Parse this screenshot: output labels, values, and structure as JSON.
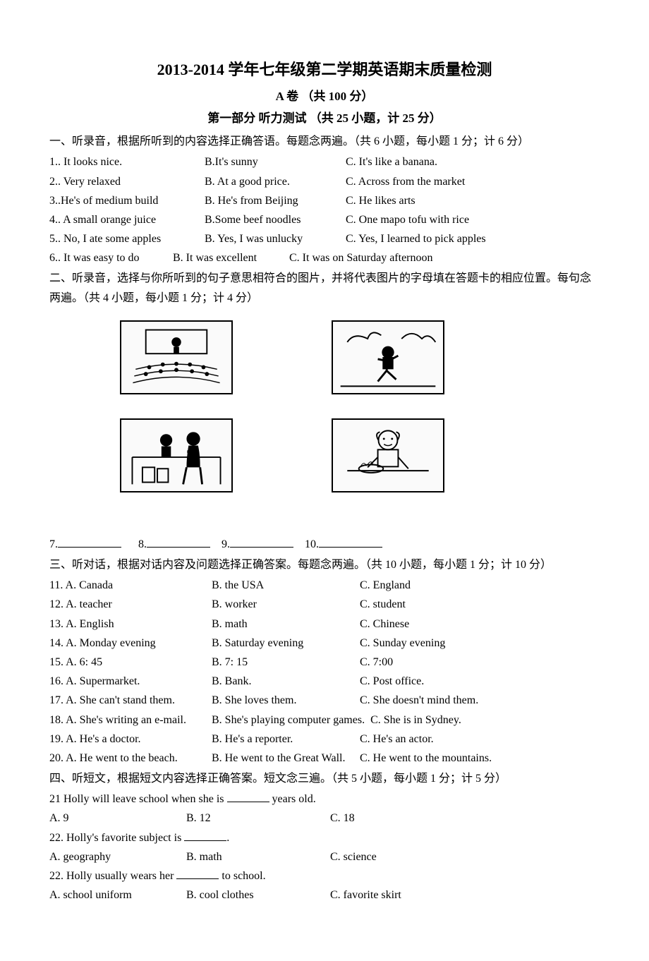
{
  "title": "2013-2014 学年七年级第二学期英语期末质量检测",
  "paper_label": "A 卷 （共 100 分）",
  "part1_title": "第一部分   听力测试  （共 25 小题，计 25 分）",
  "section1": {
    "instruction": "一、听录音，根据所听到的内容选择正确答语。每题念两遍。（共 6 小题，每小题 1 分；计 6 分）",
    "questions": [
      {
        "n": "1",
        "A": "A. It looks nice.",
        "B": "B.It's sunny",
        "C": "C. It's like a banana."
      },
      {
        "n": "2",
        "A": "A. Very relaxed",
        "B": "B. At a good price.",
        "C": "C. Across from the market"
      },
      {
        "n": "3",
        "A": "A.He's of medium build",
        "B": "B. He's from Beijing",
        "C": "C. He likes arts"
      },
      {
        "n": "4",
        "A": "A. A small orange juice",
        "B": "B.Some beef noodles",
        "C": "C. One mapo tofu with rice"
      },
      {
        "n": "5",
        "A": "A. No, I ate some apples",
        "B": "B. Yes, I was unlucky",
        "C": "C. Yes, I learned to pick apples"
      },
      {
        "n": "6",
        "A": "A. It was easy to do",
        "B": "B. It was excellent",
        "C": "C. It was on Saturday afternoon"
      }
    ]
  },
  "section2": {
    "instruction": "二、听录音，选择与你所听到的句子意思相符合的图片，并将代表图片的字母填在答题卡的相应位置。每句念两遍。（共 4 小题，每小题 1 分；计 4 分）",
    "fill_labels": [
      "7.",
      "8.",
      "9.",
      "10."
    ]
  },
  "section3": {
    "instruction": "三、听对话，根据对话内容及问题选择正确答案。每题念两遍。（共 10 小题，每小题 1 分；计 10 分）",
    "questions": [
      {
        "n": "11",
        "A": "A. Canada",
        "B": "B. the USA",
        "C": "C. England"
      },
      {
        "n": "12",
        "A": "A. teacher",
        "B": "B. worker",
        "C": "C. student"
      },
      {
        "n": "13",
        "A": "A. English",
        "B": "B. math",
        "C": "C. Chinese"
      },
      {
        "n": "14",
        "A": "A. Monday evening",
        "B": "B. Saturday evening",
        "C": "C. Sunday evening"
      },
      {
        "n": "15",
        "A": "A. 6: 45",
        "B": "B. 7: 15",
        "C": "C. 7:00"
      },
      {
        "n": "16",
        "A": "A. Supermarket.",
        "B": "B. Bank.",
        "C": "C. Post office."
      },
      {
        "n": "17",
        "A": "A. She can't stand them.",
        "B": "B. She loves them.",
        "C": "C. She doesn't mind them."
      },
      {
        "n": "18",
        "A": "A. She's writing an e-mail.",
        "B": "B. She's playing computer games.",
        "C": "C. She is in Sydney."
      },
      {
        "n": "19",
        "A": "A. He's a doctor.",
        "B": "B. He's a reporter.",
        "C": "C. He's an actor."
      },
      {
        "n": "20",
        "A": "A. He went to the beach.",
        "B": "B. He went to the Great Wall.",
        "C": "C. He went to the mountains."
      }
    ]
  },
  "section4": {
    "instruction": "四、听短文，根据短文内容选择正确答案。短文念三遍。（共 5 小题，每小题 1 分；计 5 分）",
    "q21_stem_pre": "21 Holly will leave school when she is ",
    "q21_stem_post": " years old.",
    "q21": {
      "A": "A. 9",
      "B": "B. 12",
      "C": "C. 18"
    },
    "q22a_stem_pre": "22. Holly's favorite subject is ",
    "q22a_stem_post": ".",
    "q22a": {
      "A": "A. geography",
      "B": "B. math",
      "C": "C. science"
    },
    "q22b_stem_pre": "22. Holly usually wears her ",
    "q22b_stem_post": " to school.",
    "q22b": {
      "A": "A. school uniform",
      "B": "B. cool clothes",
      "C": "C. favorite skirt"
    }
  },
  "layout": {
    "s1_colA_width": 220,
    "s1_colB_width": 200,
    "s3_colA_width": 230,
    "s3_colB_width": 210,
    "s4_colA_width": 190,
    "s4_colB_width": 200
  }
}
